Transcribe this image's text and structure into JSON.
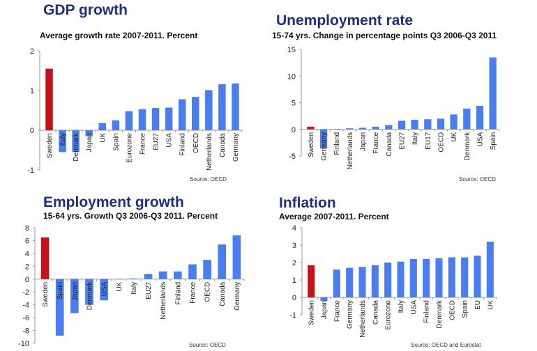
{
  "colors": {
    "highlight": "#c8101a",
    "bar": "#4a7ef0",
    "title": "#1c2f86"
  },
  "chart_data": [
    {
      "type": "bar",
      "title": "GDP growth",
      "subtitle": "Average growth rate 2007-2011. Percent",
      "source": "Source: OECD",
      "ylim": [
        -1,
        2
      ],
      "yticks": [
        2,
        1,
        0,
        -1
      ],
      "highlight": "Sweden",
      "categories": [
        "Sweden",
        "Italy",
        "Denmark",
        "Japan",
        "UK",
        "Spain",
        "Eurozone",
        "France",
        "EU27",
        "USA",
        "Finland",
        "OECD",
        "Netherlands",
        "Canada",
        "Germany"
      ],
      "values": [
        1.55,
        -0.55,
        -0.55,
        -0.15,
        0.18,
        0.25,
        0.48,
        0.53,
        0.56,
        0.57,
        0.78,
        0.84,
        1.01,
        1.16,
        1.18
      ]
    },
    {
      "type": "bar",
      "title": "Unemployment rate",
      "subtitle": "15-74 yrs. Change in percentage points Q3 2006-Q3 2011",
      "source": "Source: OECD",
      "ylim": [
        -5,
        15
      ],
      "yticks": [
        15,
        10,
        5,
        0,
        -5
      ],
      "highlight": "Sweden",
      "categories": [
        "Sweden",
        "Germany",
        "Finland",
        "Netherlands",
        "Japan",
        "France",
        "Canada",
        "EU27",
        "Italy",
        "EU17",
        "OECD",
        "UK",
        "Denmark",
        "USA",
        "Spain"
      ],
      "values": [
        0.5,
        -3.6,
        0.1,
        0.2,
        0.3,
        0.5,
        0.8,
        1.6,
        1.8,
        1.9,
        2.0,
        2.8,
        3.9,
        4.4,
        13.5
      ]
    },
    {
      "type": "bar",
      "title": "Employment growth",
      "subtitle": "15-64 yrs. Growth Q3 2006-Q3 2011. Percent",
      "source": "Source: OECD",
      "ylim": [
        -10,
        8
      ],
      "yticks": [
        8,
        6,
        4,
        2,
        0,
        -2,
        -4,
        -6,
        -8,
        -10
      ],
      "highlight": "Sweden",
      "categories": [
        "Sweden",
        "Spain",
        "Japan",
        "Denmark",
        "USA",
        "UK",
        "Italy",
        "EU27",
        "Netherlands",
        "Finland",
        "France",
        "OECD",
        "Canada",
        "Germany"
      ],
      "values": [
        6.5,
        -8.8,
        -5.3,
        -4.0,
        -3.3,
        0,
        0.1,
        0.8,
        1.2,
        1.2,
        2.3,
        3.0,
        5.4,
        6.8
      ]
    },
    {
      "type": "bar",
      "title": "Inflation",
      "subtitle": "Average 2007-2011. Percent",
      "source": "Source: OECD and Eurostat",
      "ylim": [
        -1,
        4
      ],
      "yticks": [
        4,
        3,
        2,
        1,
        0,
        -1
      ],
      "highlight": "Sweden",
      "categories": [
        "Sweden",
        "Japan",
        "France",
        "Germany",
        "Netherlands",
        "Canada",
        "Eurozone",
        "Italy",
        "USA",
        "Finland",
        "Denmark",
        "OECD",
        "Spain",
        "EU",
        "UK"
      ],
      "values": [
        1.85,
        -0.2,
        1.6,
        1.7,
        1.75,
        1.85,
        2.0,
        2.05,
        2.2,
        2.2,
        2.25,
        2.3,
        2.3,
        2.4,
        3.2
      ]
    }
  ]
}
